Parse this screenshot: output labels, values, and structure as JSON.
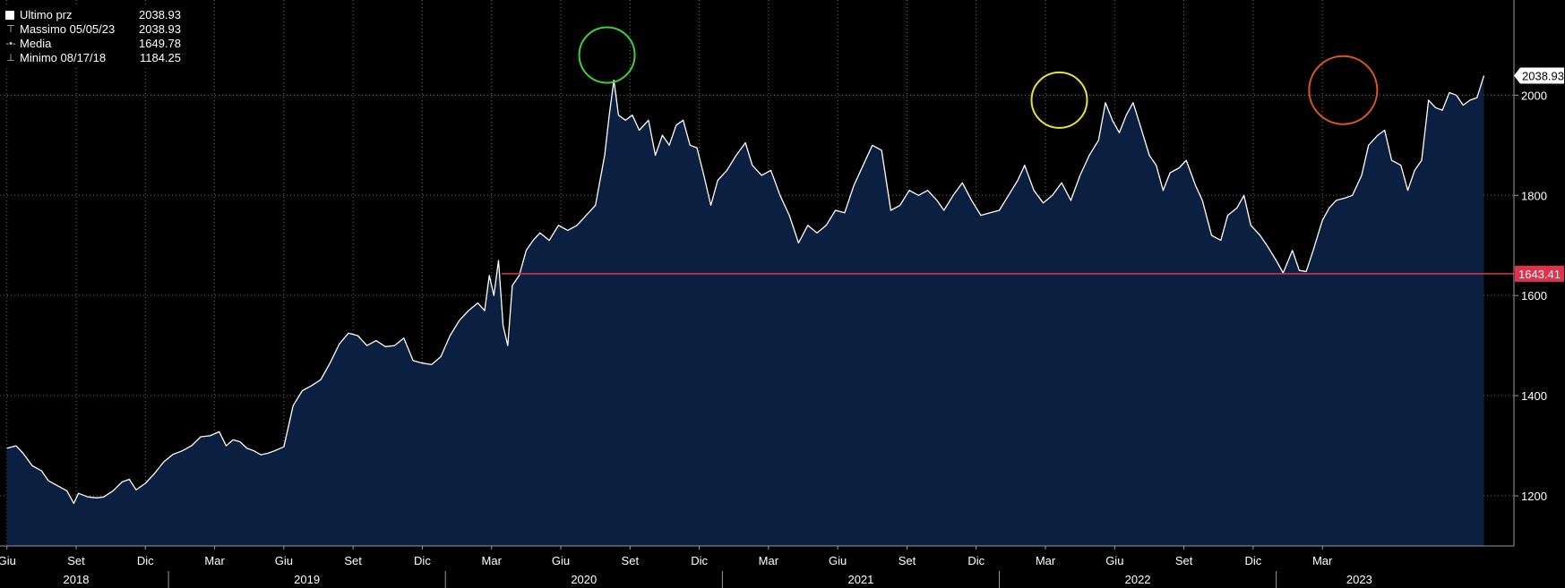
{
  "legend": {
    "last": {
      "label": "Ultimo prz",
      "value": "2038.93"
    },
    "max": {
      "label": "Massimo 05/05/23",
      "value": "2038.93"
    },
    "mean": {
      "label": "Media",
      "value": "1649.78"
    },
    "min": {
      "label": "Minimo 08/17/18",
      "value": "1184.25"
    }
  },
  "colors": {
    "background": "#000000",
    "area_fill": "#0b2040",
    "line": "#ffffff",
    "grid": "#6b6b6b",
    "reference_line": "#e0324a",
    "circle_green": "#3fcf3a",
    "circle_yellow": "#e7e233",
    "circle_orange": "#d9581e"
  },
  "chart_data": {
    "type": "area",
    "x_range": [
      "2018-05",
      "2023-05"
    ],
    "ylim": [
      1100,
      2190
    ],
    "y_ticks": [
      1200,
      1400,
      1600,
      1800,
      2000
    ],
    "grid": true,
    "month_ticks": [
      {
        "label": "Giu",
        "t": 0
      },
      {
        "label": "Set",
        "t": 3
      },
      {
        "label": "Dic",
        "t": 6
      },
      {
        "label": "Mar",
        "t": 9
      },
      {
        "label": "Giu",
        "t": 12
      },
      {
        "label": "Set",
        "t": 15
      },
      {
        "label": "Dic",
        "t": 18
      },
      {
        "label": "Mar",
        "t": 21
      },
      {
        "label": "Giu",
        "t": 24
      },
      {
        "label": "Set",
        "t": 27
      },
      {
        "label": "Dic",
        "t": 30
      },
      {
        "label": "Mar",
        "t": 33
      },
      {
        "label": "Giu",
        "t": 36
      },
      {
        "label": "Set",
        "t": 39
      },
      {
        "label": "Dic",
        "t": 42
      },
      {
        "label": "Mar",
        "t": 45
      },
      {
        "label": "Giu",
        "t": 48
      },
      {
        "label": "Set",
        "t": 51
      },
      {
        "label": "Dic",
        "t": 54
      },
      {
        "label": "Mar",
        "t": 57
      }
    ],
    "year_labels": [
      {
        "label": "2018",
        "t": 3
      },
      {
        "label": "2019",
        "t": 13
      },
      {
        "label": "2020",
        "t": 25
      },
      {
        "label": "2021",
        "t": 37
      },
      {
        "label": "2022",
        "t": 49
      },
      {
        "label": "2023",
        "t": 58.6
      }
    ],
    "year_separators": [
      7,
      19,
      31,
      43,
      55
    ],
    "reference_line": {
      "value": 1643.41,
      "label": "1643.41"
    },
    "last_value": {
      "value": 2038.93,
      "label": "2038.93"
    },
    "highlight_circles": [
      {
        "t": 26.0,
        "value": 2080,
        "color": "green"
      },
      {
        "t": 45.6,
        "value": 1990,
        "color": "yellow"
      },
      {
        "t": 57.9,
        "value": 2010,
        "color": "orange"
      }
    ],
    "series": [
      {
        "values": [
          [
            0,
            1295
          ],
          [
            0.4,
            1300
          ],
          [
            0.7,
            1285
          ],
          [
            1.1,
            1260
          ],
          [
            1.5,
            1250
          ],
          [
            1.8,
            1230
          ],
          [
            2.2,
            1220
          ],
          [
            2.6,
            1210
          ],
          [
            2.9,
            1185
          ],
          [
            3.1,
            1205
          ],
          [
            3.5,
            1198
          ],
          [
            3.9,
            1196
          ],
          [
            4.2,
            1198
          ],
          [
            4.6,
            1210
          ],
          [
            5.0,
            1228
          ],
          [
            5.3,
            1233
          ],
          [
            5.6,
            1212
          ],
          [
            6.0,
            1225
          ],
          [
            6.4,
            1245
          ],
          [
            6.8,
            1268
          ],
          [
            7.2,
            1283
          ],
          [
            7.6,
            1290
          ],
          [
            8.0,
            1300
          ],
          [
            8.4,
            1318
          ],
          [
            8.8,
            1320
          ],
          [
            9.2,
            1328
          ],
          [
            9.5,
            1300
          ],
          [
            9.8,
            1312
          ],
          [
            10.1,
            1308
          ],
          [
            10.4,
            1295
          ],
          [
            10.7,
            1290
          ],
          [
            11.0,
            1282
          ],
          [
            11.3,
            1285
          ],
          [
            11.6,
            1290
          ],
          [
            12.0,
            1298
          ],
          [
            12.4,
            1380
          ],
          [
            12.8,
            1410
          ],
          [
            13.2,
            1420
          ],
          [
            13.6,
            1432
          ],
          [
            14.0,
            1465
          ],
          [
            14.4,
            1503
          ],
          [
            14.8,
            1525
          ],
          [
            15.2,
            1520
          ],
          [
            15.6,
            1500
          ],
          [
            16.0,
            1510
          ],
          [
            16.4,
            1498
          ],
          [
            16.8,
            1500
          ],
          [
            17.2,
            1515
          ],
          [
            17.6,
            1470
          ],
          [
            18.0,
            1465
          ],
          [
            18.4,
            1462
          ],
          [
            18.8,
            1478
          ],
          [
            19.2,
            1520
          ],
          [
            19.6,
            1550
          ],
          [
            20.0,
            1570
          ],
          [
            20.4,
            1585
          ],
          [
            20.7,
            1570
          ],
          [
            20.9,
            1640
          ],
          [
            21.1,
            1600
          ],
          [
            21.3,
            1670
          ],
          [
            21.5,
            1540
          ],
          [
            21.7,
            1500
          ],
          [
            21.9,
            1620
          ],
          [
            22.2,
            1640
          ],
          [
            22.5,
            1690
          ],
          [
            22.8,
            1710
          ],
          [
            23.1,
            1725
          ],
          [
            23.5,
            1710
          ],
          [
            23.9,
            1740
          ],
          [
            24.3,
            1730
          ],
          [
            24.7,
            1740
          ],
          [
            25.1,
            1760
          ],
          [
            25.5,
            1780
          ],
          [
            25.9,
            1880
          ],
          [
            26.1,
            1960
          ],
          [
            26.3,
            2030
          ],
          [
            26.5,
            1960
          ],
          [
            26.8,
            1950
          ],
          [
            27.1,
            1960
          ],
          [
            27.4,
            1930
          ],
          [
            27.8,
            1950
          ],
          [
            28.1,
            1880
          ],
          [
            28.4,
            1920
          ],
          [
            28.7,
            1900
          ],
          [
            29.0,
            1940
          ],
          [
            29.3,
            1950
          ],
          [
            29.6,
            1900
          ],
          [
            29.9,
            1895
          ],
          [
            30.2,
            1840
          ],
          [
            30.5,
            1780
          ],
          [
            30.8,
            1830
          ],
          [
            31.2,
            1850
          ],
          [
            31.6,
            1880
          ],
          [
            32.0,
            1905
          ],
          [
            32.3,
            1860
          ],
          [
            32.7,
            1840
          ],
          [
            33.1,
            1850
          ],
          [
            33.5,
            1800
          ],
          [
            33.9,
            1760
          ],
          [
            34.3,
            1705
          ],
          [
            34.7,
            1740
          ],
          [
            35.1,
            1725
          ],
          [
            35.5,
            1740
          ],
          [
            35.9,
            1770
          ],
          [
            36.3,
            1765
          ],
          [
            36.7,
            1820
          ],
          [
            37.1,
            1860
          ],
          [
            37.5,
            1900
          ],
          [
            37.9,
            1890
          ],
          [
            38.3,
            1770
          ],
          [
            38.7,
            1780
          ],
          [
            39.1,
            1810
          ],
          [
            39.5,
            1800
          ],
          [
            39.9,
            1810
          ],
          [
            40.3,
            1790
          ],
          [
            40.6,
            1770
          ],
          [
            41.0,
            1800
          ],
          [
            41.4,
            1825
          ],
          [
            41.8,
            1790
          ],
          [
            42.2,
            1760
          ],
          [
            42.6,
            1765
          ],
          [
            43.0,
            1770
          ],
          [
            43.4,
            1800
          ],
          [
            43.8,
            1830
          ],
          [
            44.1,
            1860
          ],
          [
            44.5,
            1810
          ],
          [
            44.9,
            1785
          ],
          [
            45.3,
            1800
          ],
          [
            45.7,
            1825
          ],
          [
            46.1,
            1790
          ],
          [
            46.5,
            1840
          ],
          [
            46.9,
            1880
          ],
          [
            47.3,
            1910
          ],
          [
            47.6,
            1985
          ],
          [
            47.9,
            1950
          ],
          [
            48.2,
            1925
          ],
          [
            48.5,
            1960
          ],
          [
            48.8,
            1985
          ],
          [
            49.1,
            1940
          ],
          [
            49.5,
            1880
          ],
          [
            49.8,
            1860
          ],
          [
            50.1,
            1810
          ],
          [
            50.4,
            1845
          ],
          [
            50.8,
            1855
          ],
          [
            51.1,
            1870
          ],
          [
            51.5,
            1820
          ],
          [
            51.8,
            1790
          ],
          [
            52.2,
            1720
          ],
          [
            52.6,
            1710
          ],
          [
            52.9,
            1760
          ],
          [
            53.3,
            1775
          ],
          [
            53.6,
            1800
          ],
          [
            53.9,
            1740
          ],
          [
            54.3,
            1720
          ],
          [
            54.6,
            1700
          ],
          [
            55.0,
            1670
          ],
          [
            55.3,
            1645
          ],
          [
            55.7,
            1690
          ],
          [
            56.0,
            1650
          ],
          [
            56.3,
            1648
          ],
          [
            56.6,
            1690
          ],
          [
            57.0,
            1750
          ],
          [
            57.3,
            1775
          ],
          [
            57.6,
            1790
          ],
          [
            58.0,
            1795
          ],
          [
            58.3,
            1800
          ],
          [
            58.7,
            1840
          ],
          [
            59.0,
            1900
          ],
          [
            59.4,
            1920
          ],
          [
            59.7,
            1930
          ],
          [
            60.0,
            1870
          ],
          [
            60.4,
            1860
          ],
          [
            60.7,
            1810
          ],
          [
            61.0,
            1850
          ],
          [
            61.3,
            1870
          ],
          [
            61.6,
            1990
          ],
          [
            61.9,
            1975
          ],
          [
            62.2,
            1970
          ],
          [
            62.5,
            2005
          ],
          [
            62.8,
            2000
          ],
          [
            63.1,
            1980
          ],
          [
            63.4,
            1990
          ],
          [
            63.7,
            1995
          ],
          [
            64.0,
            2038.93
          ]
        ]
      }
    ]
  }
}
